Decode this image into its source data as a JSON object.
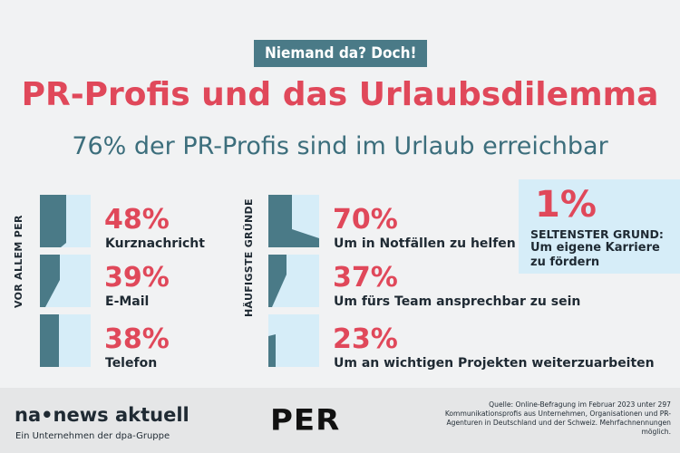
{
  "header": {
    "kicker": "Niemand da? Doch!",
    "title": "PR-Profis und das Urlaubsdilemma",
    "subtitle": "76% der PR-Profis sind im Urlaub erreichbar"
  },
  "colors": {
    "accent_red": "#e0485a",
    "teal": "#4a7a87",
    "light_blue": "#d6edf8"
  },
  "chart_data": [
    {
      "type": "bar",
      "group_label": "VOR ALLEM PER",
      "categories": [
        "Kurznachricht",
        "E-Mail",
        "Telefon"
      ],
      "value_labels": [
        "48%",
        "39%",
        "38%"
      ],
      "values": [
        48,
        39,
        38
      ],
      "ylim": [
        0,
        100
      ]
    },
    {
      "type": "bar",
      "group_label": "HÄUFIGSTE GRÜNDE",
      "categories": [
        "Um in Notfällen zu helfen",
        "Um fürs Team ansprechbar zu sein",
        "Um an wichtigen Projekten weiterzuarbeiten"
      ],
      "value_labels": [
        "70%",
        "37%",
        "23%"
      ],
      "values": [
        70,
        37,
        23
      ],
      "ylim": [
        0,
        100
      ]
    }
  ],
  "highlight": {
    "value": "1%",
    "heading": "SELTENSTER GRUND:",
    "text": "Um eigene Karriere zu fördern"
  },
  "footer": {
    "logo_left": "na•news aktuell",
    "logo_left_sub": "Ein Unternehmen der dpa-Gruppe",
    "logo_center": "PER",
    "source": "Quelle: Online-Befragung im Februar 2023 unter 297 Kommunikationsprofis aus Unternehmen, Organisationen und PR-Agenturen in Deutschland und der Schweiz. Mehrfachnennungen möglich."
  }
}
